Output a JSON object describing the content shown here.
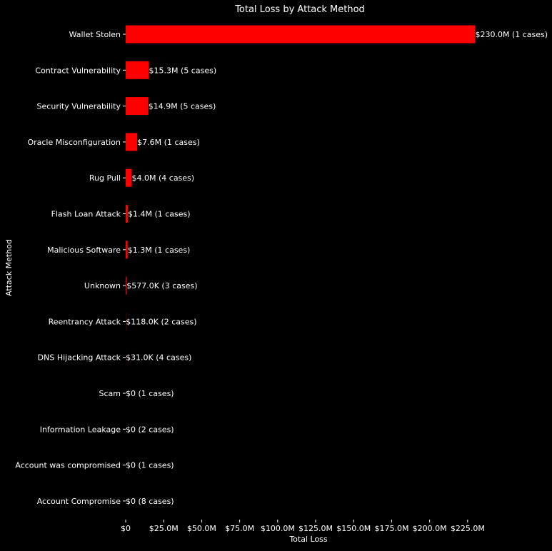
{
  "chart_data": {
    "type": "bar",
    "orientation": "horizontal",
    "title": "Total Loss by Attack Method",
    "xlabel": "Total Loss",
    "ylabel": "Attack Method",
    "xlim": [
      0,
      230
    ],
    "x_unit": "$M",
    "grid": false,
    "bar_color": "#ff0000",
    "background": "#000000",
    "xticks": [
      0,
      25,
      50,
      75,
      100,
      125,
      150,
      175,
      200,
      225
    ],
    "xtick_labels": [
      "$0",
      "$25.0M",
      "$50.0M",
      "$75.0M",
      "$100.0M",
      "$125.0M",
      "$150.0M",
      "$175.0M",
      "$200.0M",
      "$225.0M"
    ],
    "categories": [
      "Wallet Stolen",
      "Contract Vulnerability",
      "Security Vulnerability",
      "Oracle Misconfiguration",
      "Rug Pull",
      "Flash Loan Attack",
      "Malicious Software",
      "Unknown",
      "Reentrancy Attack",
      "DNS Hijacking Attack",
      "Scam",
      "Information Leakage",
      "Account was compromised",
      "Account Compromise"
    ],
    "values": [
      230.0,
      15.3,
      14.9,
      7.6,
      4.0,
      1.4,
      1.3,
      0.577,
      0.118,
      0.031,
      0,
      0,
      0,
      0
    ],
    "data_labels": [
      "$230.0M (1 cases)",
      "$15.3M (5 cases)",
      "$14.9M (5 cases)",
      "$7.6M (1 cases)",
      "$4.0M (4 cases)",
      "$1.4M (1 cases)",
      "$1.3M (1 cases)",
      "$577.0K (3 cases)",
      "$118.0K (2 cases)",
      "$31.0K (4 cases)",
      "$0 (1 cases)",
      "$0 (2 cases)",
      "$0 (1 cases)",
      "$0 (8 cases)"
    ]
  }
}
